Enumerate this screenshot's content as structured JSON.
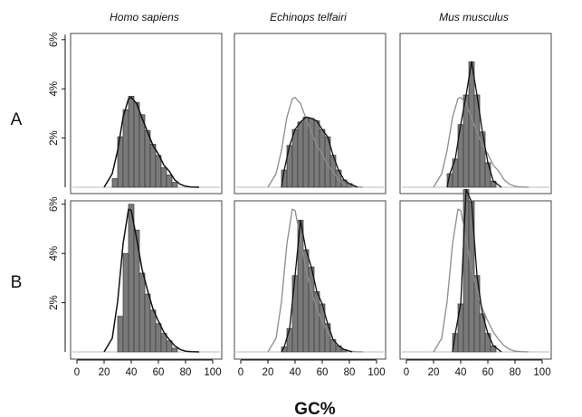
{
  "chart_data": {
    "type": "bar",
    "xlabel": "GC%",
    "columns": [
      "Homo sapiens",
      "Echinops telfairi",
      "Mus musculus"
    ],
    "rows": [
      "A",
      "B"
    ],
    "x_ticks": [
      0,
      20,
      40,
      60,
      80,
      100
    ],
    "xlim": [
      0,
      100
    ],
    "bin_width": 4,
    "y_ticks": [
      "2%",
      "4%",
      "6%"
    ],
    "y_tick_values": [
      2,
      4,
      6
    ],
    "ylim": [
      0,
      6.2
    ],
    "colors": {
      "bars": "#7a7a7a",
      "bar_edge": "#3a3a3a",
      "curve_black": "#111111",
      "curve_grey": "#8c8c8c",
      "frame": "#444444",
      "baseline": "#bbbbbb"
    },
    "reference_curve": {
      "x": [
        20,
        26,
        30,
        34,
        38,
        40,
        44,
        48,
        52,
        56,
        60,
        64,
        68,
        72,
        76,
        80,
        84,
        90
      ],
      "A": [
        0.0,
        0.55,
        1.5,
        2.85,
        3.6,
        3.65,
        3.4,
        2.8,
        2.25,
        1.7,
        1.35,
        0.9,
        0.65,
        0.3,
        0.12,
        0.04,
        0.01,
        0.0
      ],
      "B": [
        0.0,
        0.55,
        2.05,
        4.4,
        5.8,
        5.75,
        4.6,
        3.35,
        2.5,
        1.75,
        1.25,
        0.8,
        0.5,
        0.25,
        0.1,
        0.03,
        0.01,
        0.0
      ]
    },
    "panels": [
      {
        "row": "A",
        "column": "Homo sapiens",
        "bins_start": [
          26,
          30,
          34,
          38,
          42,
          46,
          50,
          54,
          58,
          62,
          66,
          70
        ],
        "values": [
          0.35,
          2.05,
          3.15,
          3.7,
          3.45,
          2.95,
          2.3,
          1.75,
          1.3,
          0.8,
          0.5,
          0.2
        ]
      },
      {
        "row": "A",
        "column": "Echinops telfairi",
        "bins_start": [
          30,
          34,
          38,
          42,
          46,
          50,
          54,
          58,
          62,
          66,
          70,
          74,
          78
        ],
        "values": [
          0.7,
          1.7,
          2.35,
          2.65,
          2.85,
          2.8,
          2.7,
          2.35,
          2.05,
          1.3,
          0.7,
          0.3,
          0.15
        ]
      },
      {
        "row": "A",
        "column": "Mus musculus",
        "bins_start": [
          30,
          34,
          38,
          42,
          46,
          50,
          54,
          58,
          62
        ],
        "values": [
          0.55,
          1.15,
          2.55,
          3.75,
          5.1,
          3.75,
          2.25,
          1.0,
          0.25
        ]
      },
      {
        "row": "B",
        "column": "Homo sapiens",
        "bins_start": [
          30,
          34,
          38,
          42,
          46,
          50,
          54,
          58,
          62,
          66,
          70
        ],
        "values": [
          1.45,
          4.0,
          6.0,
          4.95,
          3.2,
          2.35,
          1.7,
          1.15,
          0.75,
          0.45,
          0.15
        ]
      },
      {
        "row": "B",
        "column": "Echinops telfairi",
        "bins_start": [
          30,
          34,
          38,
          42,
          46,
          50,
          54,
          58,
          62,
          66,
          70,
          74
        ],
        "values": [
          0.2,
          0.95,
          3.1,
          5.35,
          4.15,
          3.45,
          2.45,
          1.95,
          1.15,
          0.5,
          0.25,
          0.1
        ]
      },
      {
        "row": "B",
        "column": "Mus musculus",
        "bins_start": [
          34,
          38,
          42,
          46,
          50,
          54,
          58,
          62
        ],
        "values": [
          0.75,
          1.95,
          6.6,
          6.1,
          3.1,
          1.55,
          0.75,
          0.25
        ]
      }
    ]
  }
}
